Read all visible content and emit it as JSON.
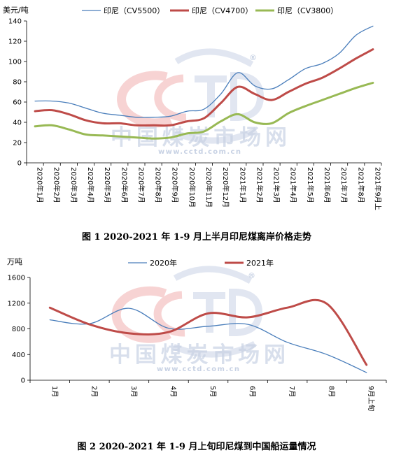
{
  "watermark": {
    "logo_text": "CCTD",
    "registered": "®",
    "site_cn": "中国煤炭市场网",
    "url": "www.cctd.com.cn"
  },
  "chart_data": [
    {
      "type": "line",
      "title": "图 1 2020-2021 年 1-9 月上半月印尼煤离岸价格走势",
      "ylabel": "美元/吨",
      "ylim": [
        0,
        140
      ],
      "yticks": [
        "0",
        "20",
        "40",
        "60",
        "80",
        "100",
        "120",
        "140"
      ],
      "grid": false,
      "legend": "top-center",
      "categories": [
        "2020年1月",
        "2020年2月",
        "2020年3月",
        "2020年4月",
        "2020年5月",
        "2020年6月",
        "2020年7月",
        "2020年8月",
        "2020年9月",
        "2020年10月",
        "2020年11月",
        "2020年12月",
        "2021年1月",
        "2021年2月",
        "2021年3月",
        "2021年4月",
        "2021年5月",
        "2021年6月",
        "2021年7月",
        "2021年8月",
        "2021年9月上"
      ],
      "series": [
        {
          "name": "印尼（CV5500）",
          "color": "#4a7ebb",
          "width": 1.3,
          "values": [
            61,
            61,
            59,
            54,
            49,
            47,
            45,
            45,
            46,
            51,
            53,
            68,
            89,
            76,
            73,
            82,
            93,
            98,
            108,
            126,
            135
          ]
        },
        {
          "name": "印尼（CV4700）",
          "color": "#be4b48",
          "width": 3,
          "values": [
            51,
            52,
            48,
            42,
            39,
            39,
            37,
            37,
            37,
            41,
            44,
            59,
            75,
            68,
            62,
            70,
            78,
            84,
            93,
            103,
            112
          ]
        },
        {
          "name": "印尼（CV3800）",
          "color": "#98b954",
          "width": 3,
          "values": [
            36,
            37,
            33,
            28,
            27,
            26,
            25,
            24,
            25,
            29,
            31,
            41,
            48,
            40,
            39,
            49,
            56,
            62,
            68,
            74,
            79
          ]
        }
      ]
    },
    {
      "type": "line",
      "title": "图 2 2020-2021 年 1-9 月上旬印尼煤到中国船运量情况",
      "ylabel": "万吨",
      "ylim": [
        0,
        1600
      ],
      "yticks": [
        "0",
        "400",
        "800",
        "1200",
        "1600"
      ],
      "grid": false,
      "legend": "top-center",
      "categories": [
        "1月",
        "2月",
        "3月",
        "4月",
        "5月",
        "6月",
        "7月",
        "8月",
        "9月上旬"
      ],
      "series": [
        {
          "name": "2020年",
          "color": "#4a7ebb",
          "width": 1.3,
          "values": [
            940,
            880,
            1120,
            810,
            840,
            870,
            590,
            400,
            120
          ]
        },
        {
          "name": "2021年",
          "color": "#be4b48",
          "width": 3,
          "values": [
            1130,
            870,
            730,
            750,
            1040,
            980,
            1130,
            1190,
            240
          ]
        }
      ]
    }
  ]
}
